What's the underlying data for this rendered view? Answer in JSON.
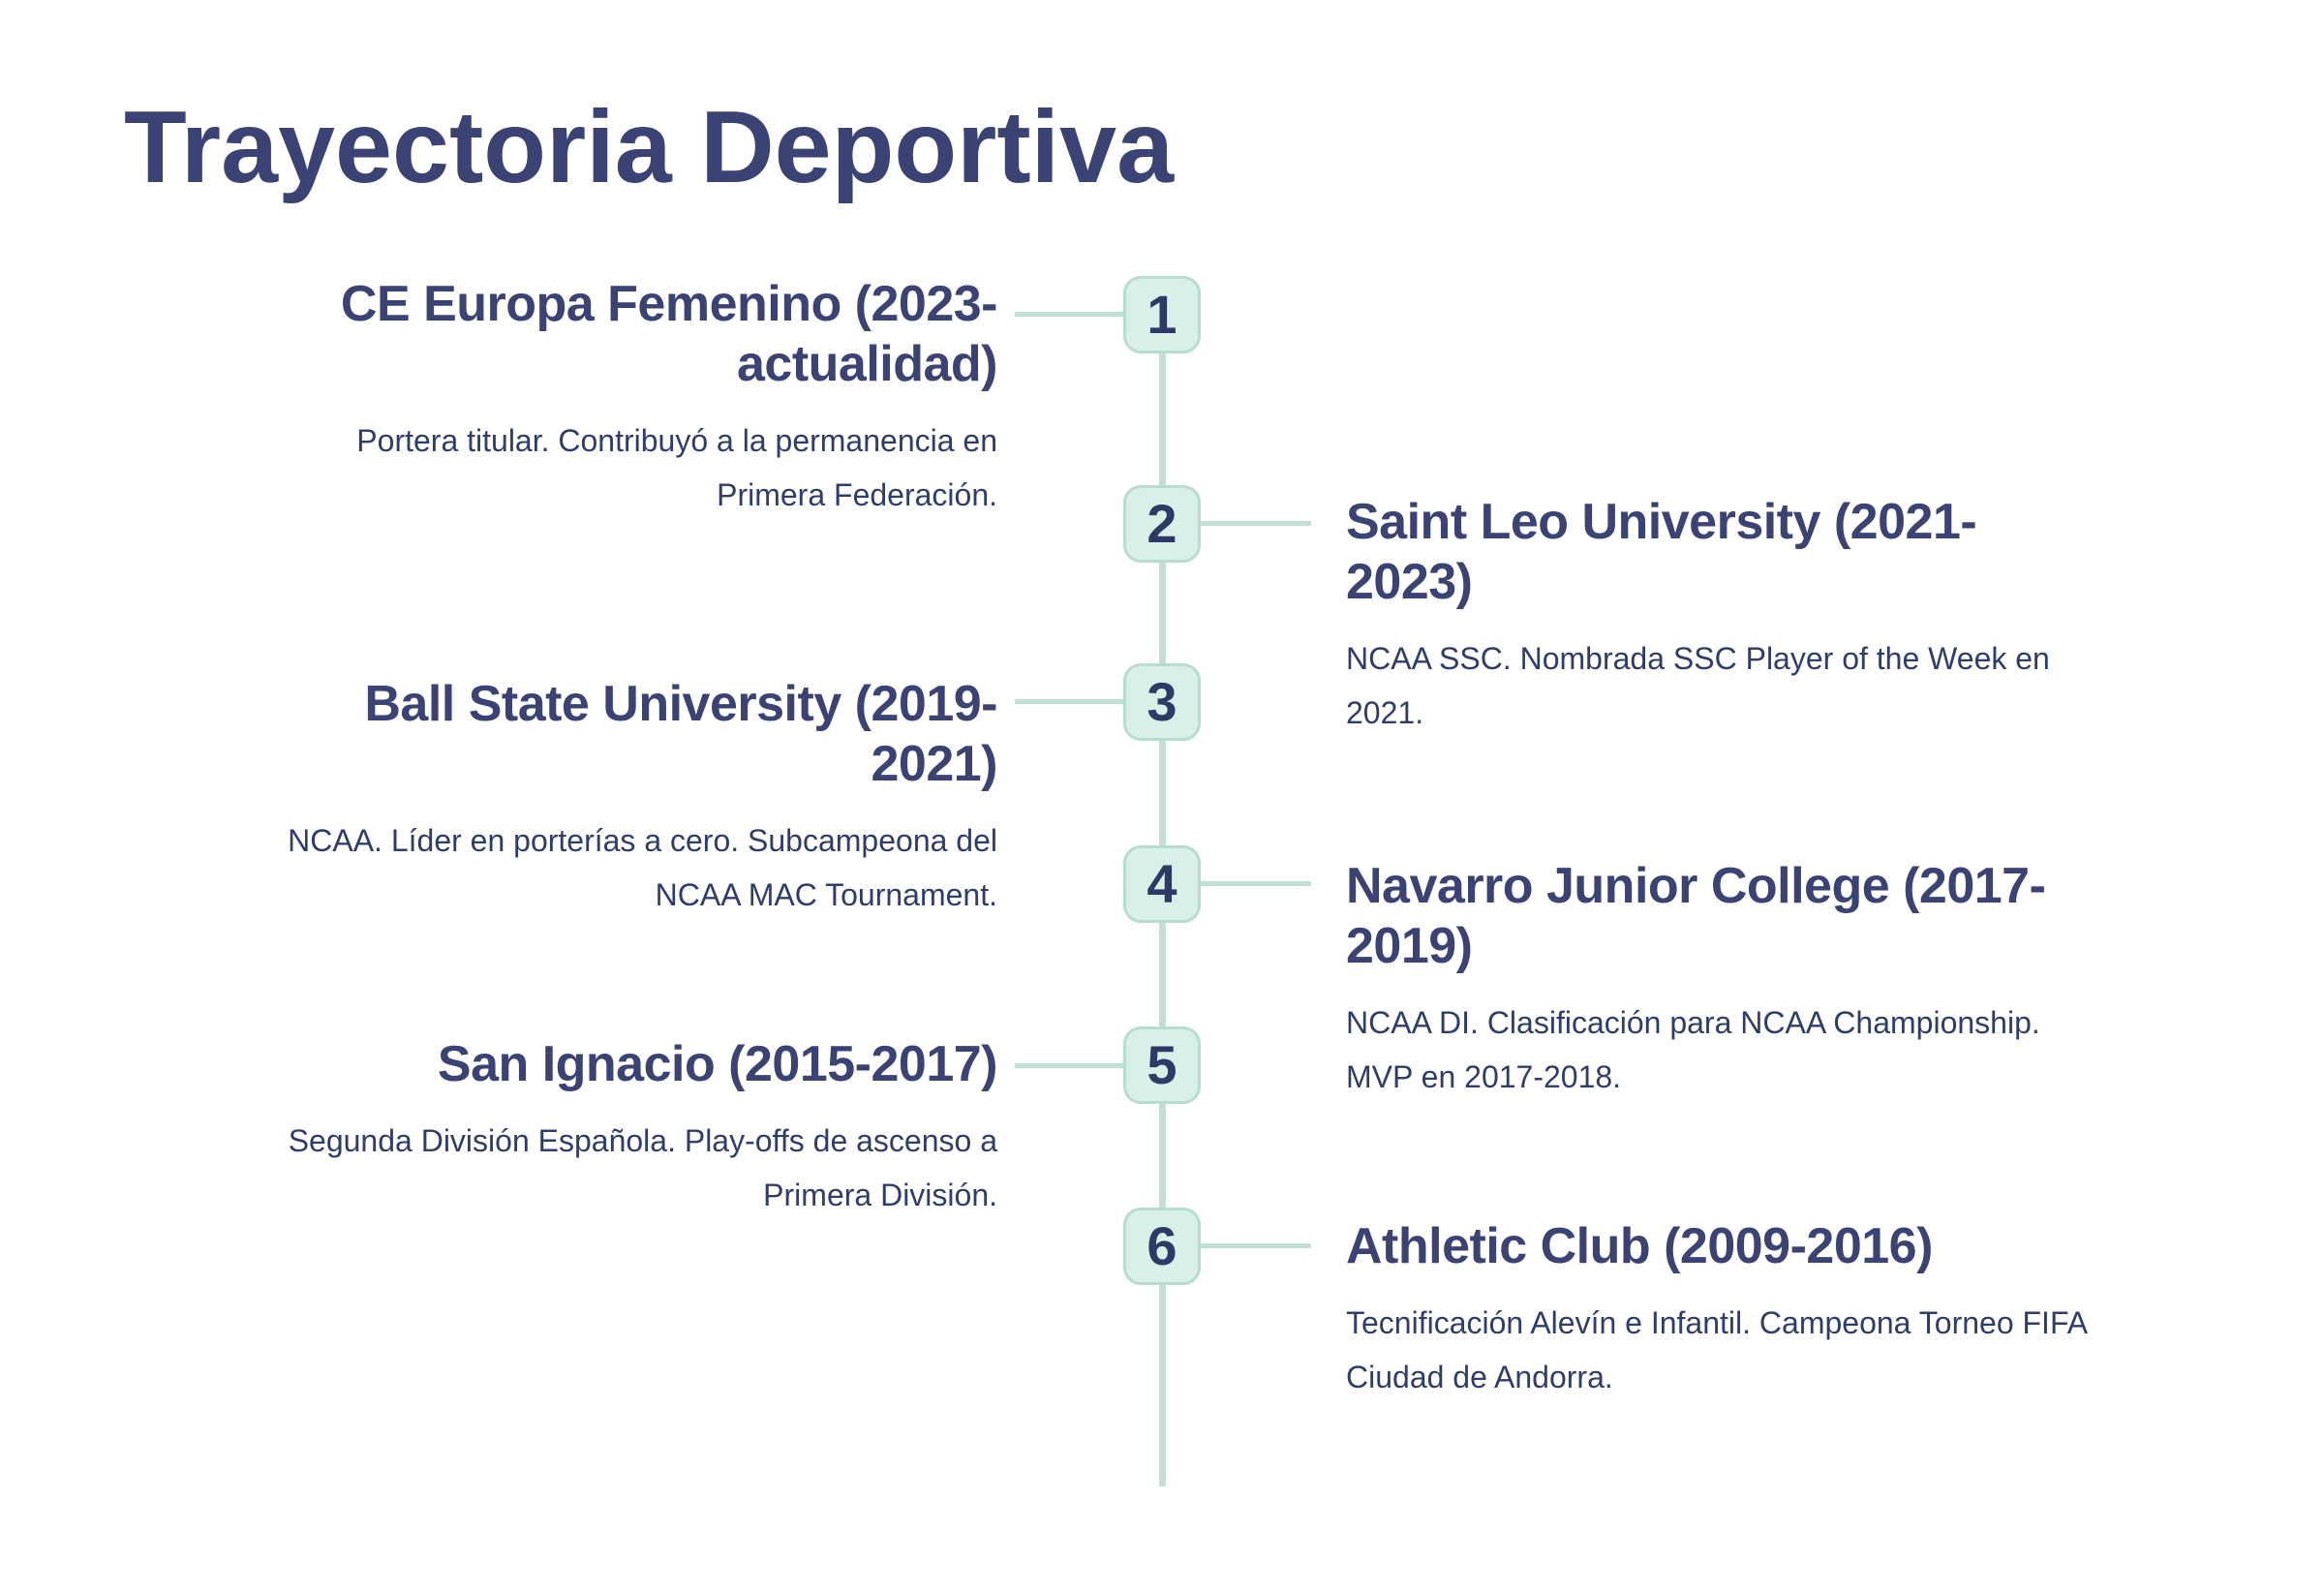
{
  "page": {
    "title": "Trayectoria Deportiva",
    "colors": {
      "heading": "#3a4373",
      "body": "#2f3d6b",
      "badge_fill": "#d9f0e9",
      "badge_border": "#b7dcd3",
      "line": "#bfe0d7",
      "number": "#2e3a66",
      "page_bg": "#ffffff"
    }
  },
  "timeline": {
    "items": [
      {
        "number": "1",
        "side": "left",
        "title_lines": [
          "CE Europa Femenino (2023-",
          "actualidad)"
        ],
        "description_lines": [
          "Portera titular. Contribuyó a la permanencia en",
          "Primera Federación."
        ]
      },
      {
        "number": "2",
        "side": "right",
        "title_lines": [
          "Saint Leo University (2021-",
          "2023)"
        ],
        "description_lines": [
          "NCAA SSC. Nombrada SSC Player of the Week en",
          "2021."
        ]
      },
      {
        "number": "3",
        "side": "left",
        "title_lines": [
          "Ball State University (2019-",
          "2021)"
        ],
        "description_lines": [
          "NCAA. Líder en porterías a cero. Subcampeona del",
          "NCAA MAC Tournament."
        ]
      },
      {
        "number": "4",
        "side": "right",
        "title_lines": [
          "Navarro Junior College (2017-",
          "2019)"
        ],
        "description_lines": [
          "NCAA DI. Clasificación para NCAA Championship.",
          "MVP en 2017-2018."
        ]
      },
      {
        "number": "5",
        "side": "left",
        "title_lines": [
          "San Ignacio (2015-2017)"
        ],
        "description_lines": [
          "Segunda División Española. Play-offs de ascenso a",
          "Primera División."
        ]
      },
      {
        "number": "6",
        "side": "right",
        "title_lines": [
          "Athletic Club (2009-2016)"
        ],
        "description_lines": [
          "Tecnificación Alevín e Infantil. Campeona Torneo FIFA",
          "Ciudad de Andorra."
        ]
      }
    ]
  }
}
